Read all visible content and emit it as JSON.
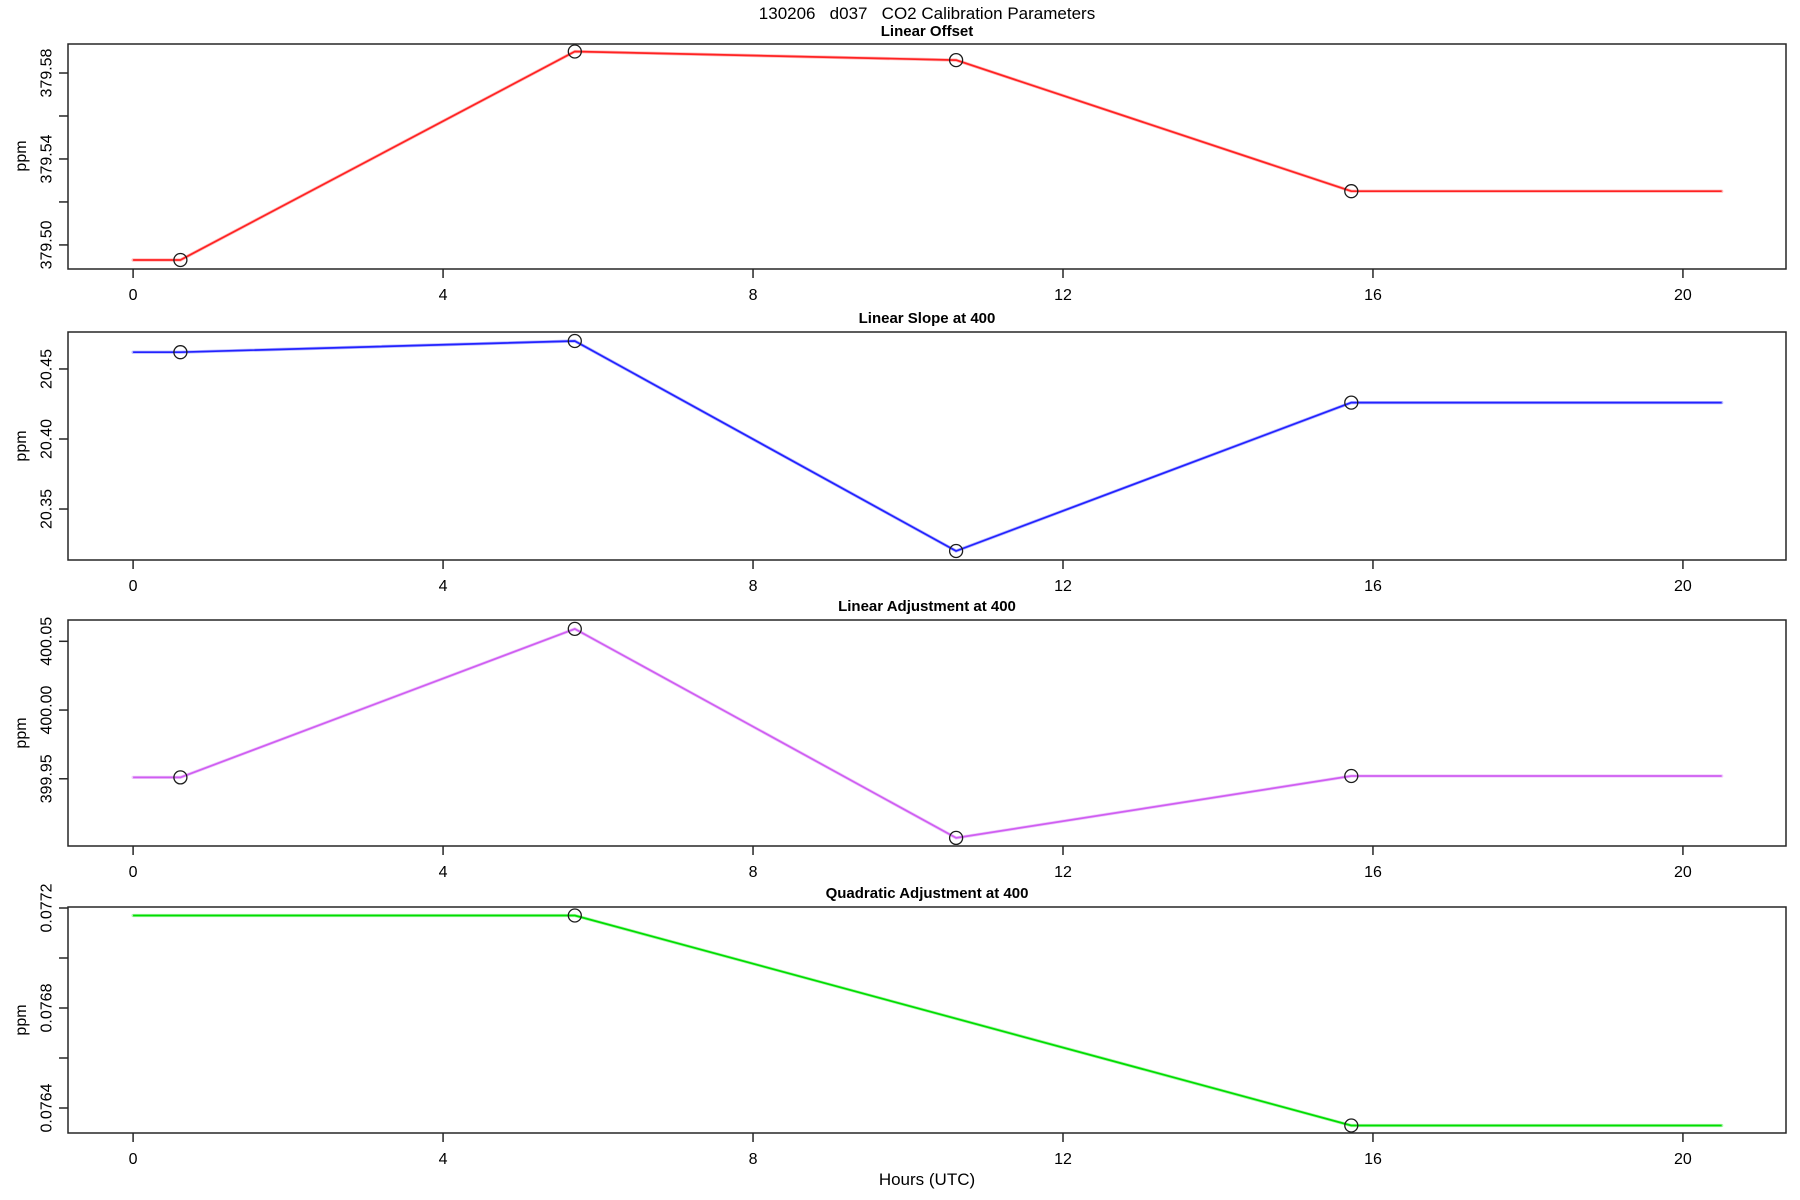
{
  "chart_data": {
    "type": "line",
    "title": "130206   d037   CO2 Calibration Parameters",
    "xlabel": "Hours (UTC)",
    "x_ticks": [
      0,
      4,
      8,
      12,
      16,
      20
    ],
    "xlim": [
      -0.84,
      21.33
    ],
    "x_range_hours": [
      0,
      20.5
    ],
    "calibration_hours": [
      0.61,
      5.7,
      10.62,
      15.72
    ],
    "grid": "off",
    "legend": "none",
    "marker_style": "open-circle",
    "panels": [
      {
        "title": "Linear Offset",
        "ylabel": "ppm",
        "color": "#ff2222",
        "ylim": [
          379.4888,
          379.5935
        ],
        "y_ticks": [
          {
            "v": 379.5,
            "label": "379.50"
          },
          {
            "v": 379.52,
            "label": ""
          },
          {
            "v": 379.54,
            "label": "379.54"
          },
          {
            "v": 379.56,
            "label": ""
          },
          {
            "v": 379.58,
            "label": "379.58"
          }
        ],
        "line": [
          [
            0,
            379.493
          ],
          [
            0.61,
            379.493
          ],
          [
            5.7,
            379.59
          ],
          [
            10.62,
            379.586
          ],
          [
            15.72,
            379.525
          ],
          [
            20.5,
            379.525
          ]
        ],
        "markers": [
          [
            0.61,
            379.493
          ],
          [
            5.7,
            379.59
          ],
          [
            10.62,
            379.586
          ],
          [
            15.72,
            379.525
          ]
        ]
      },
      {
        "title": "Linear Slope at 400",
        "ylabel": "ppm",
        "color": "#2222ff",
        "ylim": [
          20.3136,
          20.4764
        ],
        "y_ticks": [
          {
            "v": 20.35,
            "label": "20.35"
          },
          {
            "v": 20.4,
            "label": "20.40"
          },
          {
            "v": 20.45,
            "label": "20.45"
          }
        ],
        "line": [
          [
            0,
            20.462
          ],
          [
            0.61,
            20.462
          ],
          [
            5.7,
            20.47
          ],
          [
            10.62,
            20.32
          ],
          [
            15.72,
            20.426
          ],
          [
            20.5,
            20.426
          ]
        ],
        "markers": [
          [
            0.61,
            20.462
          ],
          [
            5.7,
            20.47
          ],
          [
            10.62,
            20.32
          ],
          [
            15.72,
            20.426
          ]
        ]
      },
      {
        "title": "Linear Adjustment at 400",
        "ylabel": "ppm",
        "color": "#cf5ef2",
        "ylim": [
          399.9011,
          400.0655
        ],
        "y_ticks": [
          {
            "v": 399.95,
            "label": "399.95"
          },
          {
            "v": 400.0,
            "label": "400.00"
          },
          {
            "v": 400.05,
            "label": "400.05"
          }
        ],
        "line": [
          [
            0,
            399.951
          ],
          [
            0.61,
            399.951
          ],
          [
            5.7,
            400.059
          ],
          [
            10.62,
            399.907
          ],
          [
            15.72,
            399.952
          ],
          [
            20.5,
            399.952
          ]
        ],
        "markers": [
          [
            0.61,
            399.951
          ],
          [
            5.7,
            400.059
          ],
          [
            10.62,
            399.907
          ],
          [
            15.72,
            399.952
          ]
        ]
      },
      {
        "title": "Quadratic Adjustment at 400",
        "ylabel": "ppm",
        "color": "#00dd00",
        "ylim": [
          0.0763,
          0.077204
        ],
        "y_ticks": [
          {
            "v": 0.0764,
            "label": "0.0764"
          },
          {
            "v": 0.0766,
            "label": ""
          },
          {
            "v": 0.0768,
            "label": "0.0768"
          },
          {
            "v": 0.077,
            "label": ""
          },
          {
            "v": 0.0772,
            "label": "0.0772"
          }
        ],
        "line": [
          [
            0,
            0.07717
          ],
          [
            5.7,
            0.07717
          ],
          [
            15.72,
            0.07633
          ],
          [
            20.5,
            0.07633
          ]
        ],
        "markers": [
          [
            5.7,
            0.07717
          ],
          [
            15.72,
            0.07633
          ]
        ]
      }
    ]
  }
}
